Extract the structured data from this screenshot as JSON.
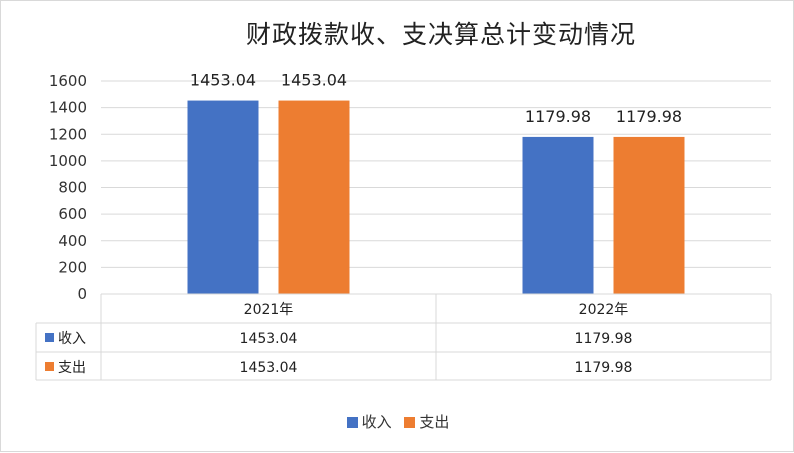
{
  "colors": {
    "income": "#4472c4",
    "expense": "#ed7d31",
    "grid": "#d9d9d9"
  },
  "chart_data": {
    "type": "bar",
    "title": "财政拨款收、支决算总计变动情况",
    "categories": [
      "2021年",
      "2022年"
    ],
    "series": [
      {
        "name": "收入",
        "values": [
          1453.04,
          1179.98
        ],
        "color": "#4472c4"
      },
      {
        "name": "支出",
        "values": [
          1453.04,
          1179.98
        ],
        "color": "#ed7d31"
      }
    ],
    "ylim": [
      0,
      1600
    ],
    "yticks": [
      0,
      200,
      400,
      600,
      800,
      1000,
      1200,
      1400,
      1600
    ],
    "grid": true,
    "legend_position": "bottom",
    "data_table": true
  }
}
